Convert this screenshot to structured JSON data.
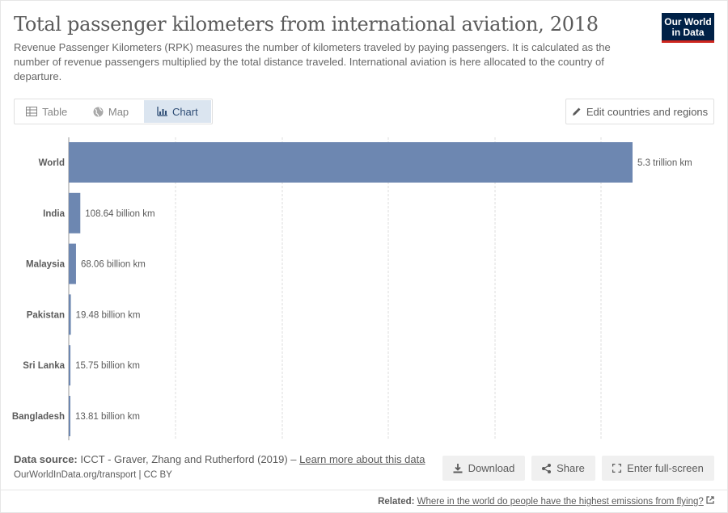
{
  "header": {
    "title": "Total passenger kilometers from international aviation, 2018",
    "subtitle": "Revenue Passenger Kilometers (RPK) measures the number of kilometers traveled by paying passengers. It is calculated as the number of revenue passengers multiplied by the total distance traveled. International aviation is here allocated to the country of departure.",
    "logo_line1": "Our World",
    "logo_line2": "in Data"
  },
  "tabs": [
    {
      "label": "Table",
      "icon": "table-icon"
    },
    {
      "label": "Map",
      "icon": "globe-icon"
    },
    {
      "label": "Chart",
      "icon": "chart-icon",
      "active": true
    }
  ],
  "edit_button": {
    "label": "Edit countries and regions",
    "icon": "pencil-icon"
  },
  "chart_data": {
    "type": "bar",
    "orientation": "horizontal",
    "categories": [
      "World",
      "India",
      "Malaysia",
      "Pakistan",
      "Sri Lanka",
      "Bangladesh"
    ],
    "values": [
      5300000000000,
      108640000000,
      68060000000,
      19480000000,
      15750000000,
      13810000000
    ],
    "data_labels": [
      "5.3 trillion km",
      "108.64 billion km",
      "68.06 billion km",
      "19.48 billion km",
      "15.75 billion km",
      "13.81 billion km"
    ],
    "xlim": [
      0,
      5300000000000
    ],
    "grid": true,
    "bar_color": "#6d87b1"
  },
  "footer": {
    "source_label": "Data source:",
    "source_text": "ICCT - Graver, Zhang and Rutherford (2019) –",
    "source_link": "Learn more about this data",
    "url": "OurWorldInData.org/transport | CC BY",
    "download": "Download",
    "share": "Share",
    "fullscreen": "Enter full-screen",
    "related_label": "Related:",
    "related_link": "Where in the world do people have the highest emissions from flying?"
  }
}
